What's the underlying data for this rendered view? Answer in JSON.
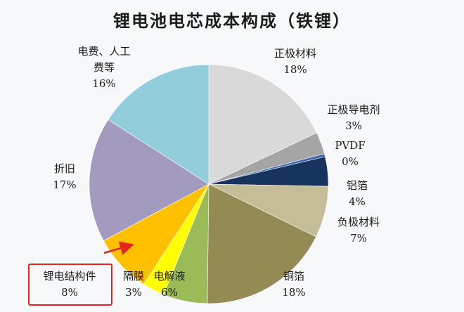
{
  "chart_data": {
    "type": "pie",
    "title": "锂电池电芯成本构成（铁锂）",
    "start": "top",
    "direction": "clockwise",
    "slices": [
      {
        "label": "正极材料",
        "value": 18,
        "pct": "18%",
        "color": "#d9d9d9"
      },
      {
        "label": "正极导电剂",
        "value": 3,
        "pct": "3%",
        "color": "#a5a5a5"
      },
      {
        "label": "PVDF",
        "value": 0,
        "pct": "0%",
        "color": "#3a64a8"
      },
      {
        "label": "铝箔",
        "value": 4,
        "pct": "4%",
        "color": "#17345f"
      },
      {
        "label": "负极材料",
        "value": 7,
        "pct": "7%",
        "color": "#c4bd97"
      },
      {
        "label": "铜箔",
        "value": 18,
        "pct": "18%",
        "color": "#948a54"
      },
      {
        "label": "电解液",
        "value": 6,
        "pct": "6%",
        "color": "#9bbb59"
      },
      {
        "label": "隔膜",
        "value": 3,
        "pct": "3%",
        "color": "#ffff00"
      },
      {
        "label": "锂电结构件",
        "value": 8,
        "pct": "8%",
        "color": "#ffc000"
      },
      {
        "label": "折旧",
        "value": 17,
        "pct": "17%",
        "color": "#a29bbf"
      },
      {
        "label": "电费、人工费等",
        "value": 16,
        "pct": "16%",
        "color": "#92cddc"
      }
    ],
    "highlight": {
      "label": "锂电结构件",
      "color": "#e52420"
    }
  }
}
